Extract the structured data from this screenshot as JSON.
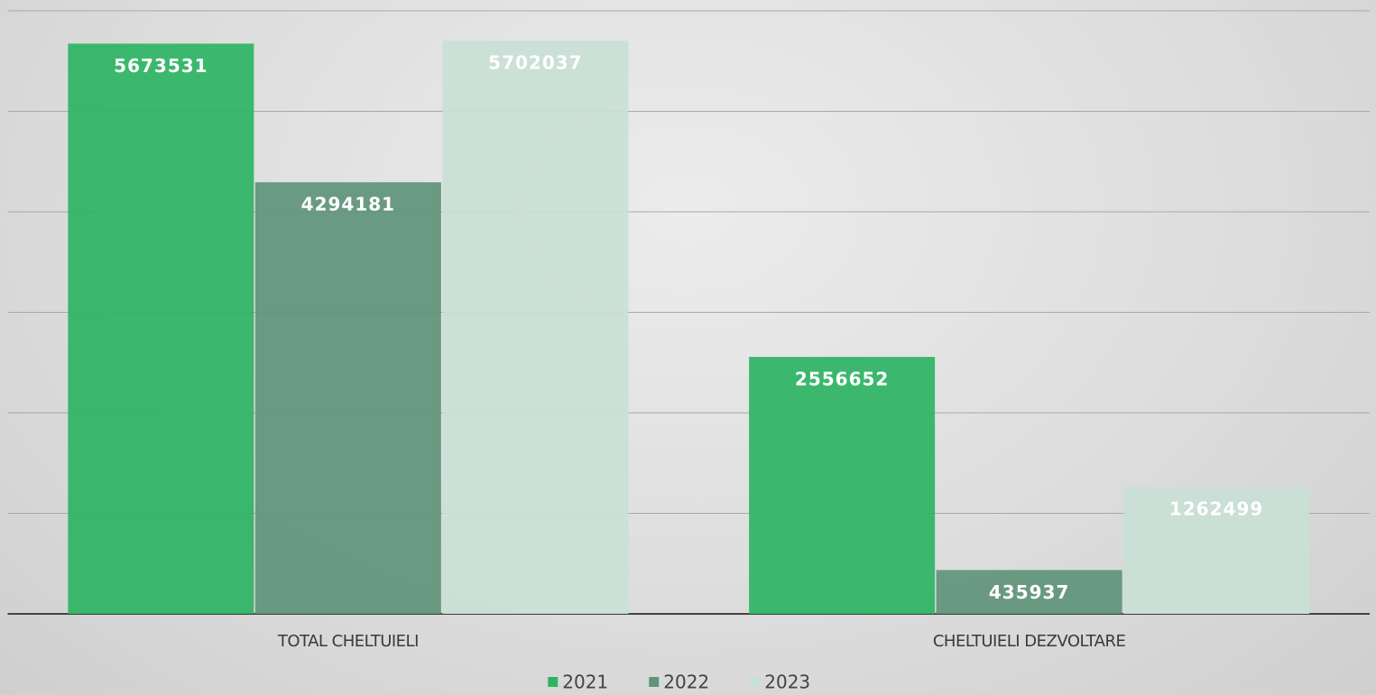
{
  "chart_data": {
    "type": "bar",
    "categories": [
      "TOTAL CHELTUIELI",
      "CHELTUIELI DEZVOLTARE"
    ],
    "series": [
      {
        "name": "2021",
        "color": "#2db463",
        "values": [
          5673531,
          2556652
        ]
      },
      {
        "name": "2022",
        "color": "#5f9479",
        "values": [
          4294181,
          435937
        ]
      },
      {
        "name": "2023",
        "color": "#c9e0d5",
        "values": [
          5702037,
          1262499
        ]
      }
    ],
    "ylim": [
      0,
      6000000
    ],
    "yticks": [
      0,
      1000000,
      2000000,
      3000000,
      4000000,
      5000000,
      6000000
    ],
    "grid": true,
    "legend": "bottom"
  }
}
